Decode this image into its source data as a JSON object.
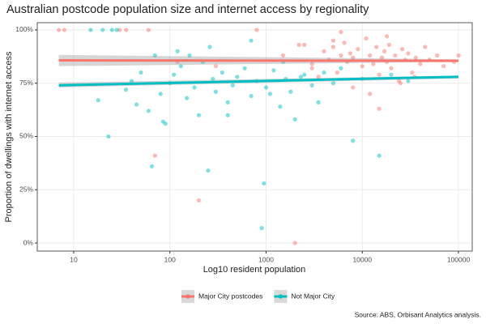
{
  "chart_data": {
    "type": "scatter",
    "title": "Australian postcode population size and internet access by regionality",
    "x_label": "Log10 resident population",
    "y_label": "Proportion of dwellings with internet access",
    "source": "Source: ABS, Orbisant Analytics analysis.",
    "x_log": true,
    "grid": true,
    "legend_position": "bottom",
    "xlim": [
      4.18,
      139000
    ],
    "ylim": [
      -3.8,
      103.4
    ],
    "xticks": [
      10,
      100,
      1000,
      10000,
      100000
    ],
    "yticks": [
      {
        "value": 0,
        "label": "0%"
      },
      {
        "value": 25,
        "label": "25%"
      },
      {
        "value": 50,
        "label": "50%"
      },
      {
        "value": 75,
        "label": "75%"
      },
      {
        "value": 100,
        "label": "100%"
      }
    ],
    "series": [
      {
        "name": "Major City postcodes",
        "color": "#F8766D",
        "x": [
          7,
          8,
          30,
          35,
          60,
          70,
          200,
          2000,
          120,
          300,
          800,
          1500,
          2500,
          3000,
          3500,
          4000,
          4500,
          5000,
          5500,
          6000,
          6500,
          7000,
          7500,
          8000,
          9000,
          10000,
          11000,
          12000,
          13000,
          14000,
          15000,
          16000,
          17000,
          18000,
          19000,
          20000,
          22000,
          24000,
          26000,
          28000,
          30000,
          33000,
          36000,
          40000,
          45000,
          50000,
          60000,
          70000,
          90000,
          100000,
          5000,
          8000,
          12000,
          18000,
          25000,
          35000,
          3000,
          15000,
          2200,
          6000
        ],
        "y": [
          100,
          100,
          100,
          100,
          100,
          41,
          20,
          0,
          85,
          83,
          100,
          88,
          93,
          84,
          78,
          90,
          86,
          92,
          80,
          88,
          94,
          85,
          89,
          87,
          91,
          83,
          96,
          88,
          84,
          92,
          79,
          87,
          90,
          85,
          93,
          82,
          88,
          76,
          91,
          86,
          89,
          80,
          87,
          84,
          92,
          86,
          88,
          83,
          85,
          88,
          95,
          73,
          70,
          97,
          75,
          78,
          82,
          63,
          93,
          99
        ],
        "trend": {
          "x": [
            7,
            100000
          ],
          "y": [
            85.7,
            85.5
          ],
          "lower": [
            83,
            85
          ],
          "upper": [
            88.3,
            86.2
          ]
        }
      },
      {
        "name": "Not Major City",
        "color": "#00BFC4",
        "x": [
          15,
          18,
          20,
          23,
          25,
          28,
          35,
          40,
          50,
          60,
          65,
          70,
          80,
          90,
          100,
          110,
          130,
          150,
          180,
          200,
          220,
          250,
          280,
          300,
          350,
          400,
          450,
          500,
          600,
          700,
          800,
          900,
          950,
          1000,
          1200,
          1400,
          1600,
          1800,
          2000,
          2500,
          3000,
          3500,
          4000,
          5000,
          6000,
          8000,
          10000,
          15000,
          20000,
          30000,
          120,
          160,
          400,
          700,
          1100,
          1500,
          2300,
          45,
          85,
          260
        ],
        "y": [
          100,
          67,
          100,
          50,
          100,
          100,
          72,
          76,
          80,
          62,
          36,
          88,
          70,
          56,
          75,
          79,
          83,
          68,
          73,
          60,
          85,
          34,
          77,
          71,
          80,
          66,
          74,
          78,
          82,
          69,
          76,
          7,
          28,
          73,
          81,
          64,
          77,
          71,
          58,
          79,
          74,
          66,
          80,
          75,
          82,
          48,
          77,
          41,
          79,
          76,
          90,
          88,
          60,
          95,
          70,
          85,
          78,
          65,
          57,
          92
        ],
        "trend": {
          "x": [
            7,
            100000
          ],
          "y": [
            74,
            78
          ],
          "lower": [
            73,
            77.2
          ],
          "upper": [
            75.3,
            78.6
          ]
        }
      }
    ]
  }
}
